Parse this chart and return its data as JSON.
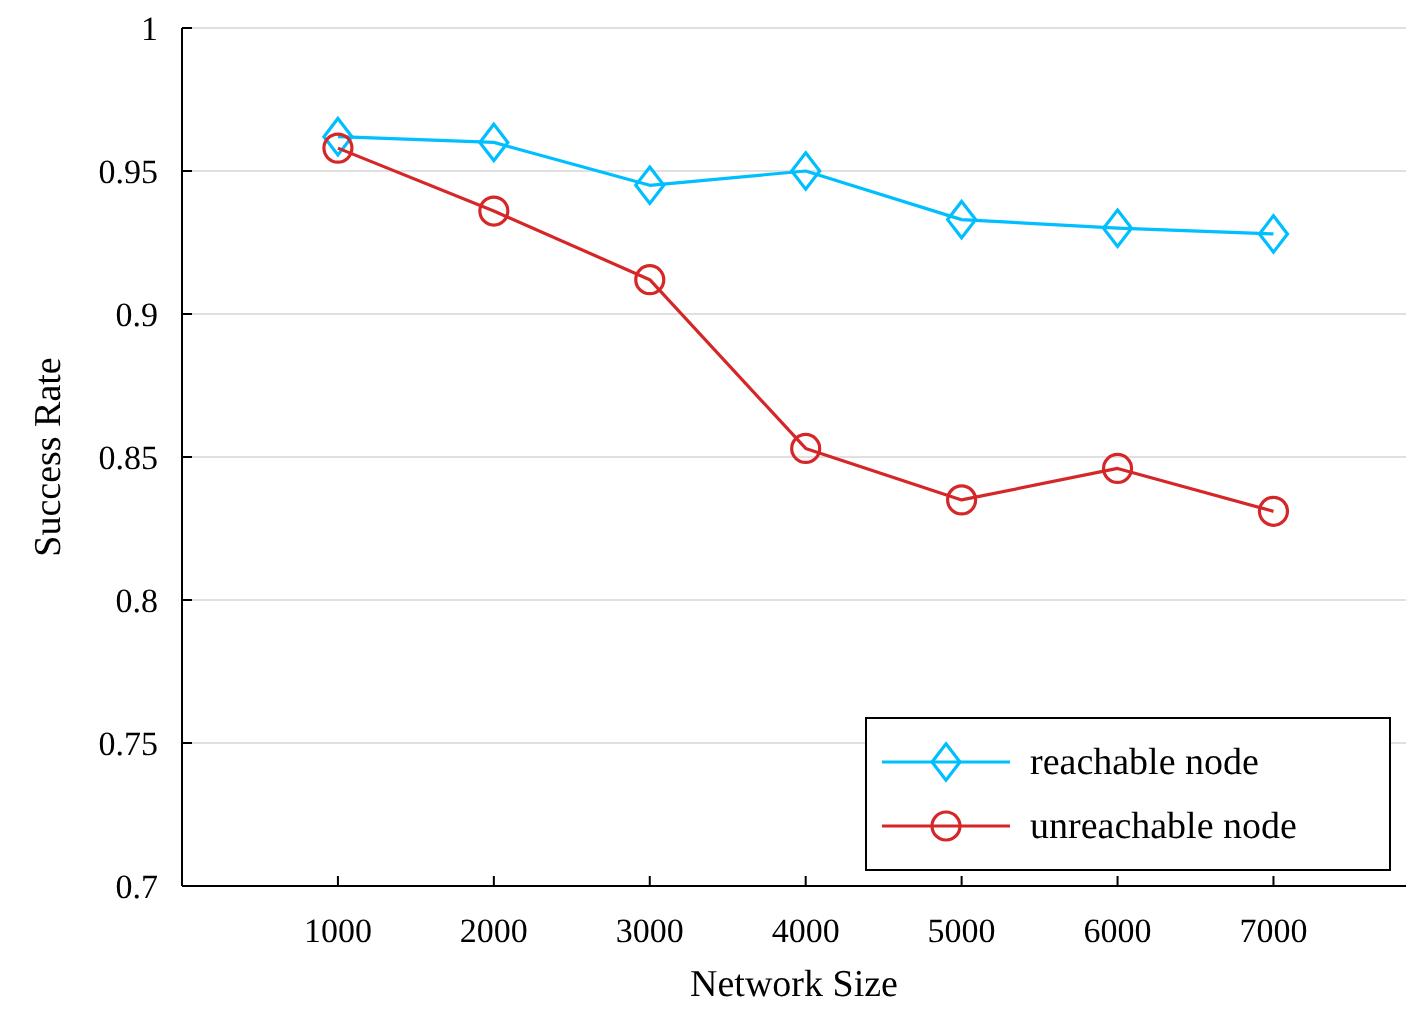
{
  "chart_data": {
    "type": "line",
    "xlabel": "Network Size",
    "ylabel": "Success Rate",
    "x": [
      1000,
      2000,
      3000,
      4000,
      5000,
      6000,
      7000
    ],
    "series": [
      {
        "name": "reachable node",
        "color": "#00bfff",
        "marker": "diamond",
        "values": [
          0.962,
          0.96,
          0.945,
          0.95,
          0.933,
          0.93,
          0.928
        ]
      },
      {
        "name": "unreachable node",
        "color": "#d62728",
        "marker": "circle",
        "values": [
          0.958,
          0.936,
          0.912,
          0.853,
          0.835,
          0.846,
          0.831
        ]
      }
    ],
    "xlim": [
      0,
      7850
    ],
    "xticks": [
      1000,
      2000,
      3000,
      4000,
      5000,
      6000,
      7000
    ],
    "ylim": [
      0.7,
      1
    ],
    "yticks": [
      0.7,
      0.75,
      0.8,
      0.85,
      0.9,
      0.95,
      1
    ],
    "grid": "y",
    "legend": "bottom right",
    "line_style": "solid"
  }
}
